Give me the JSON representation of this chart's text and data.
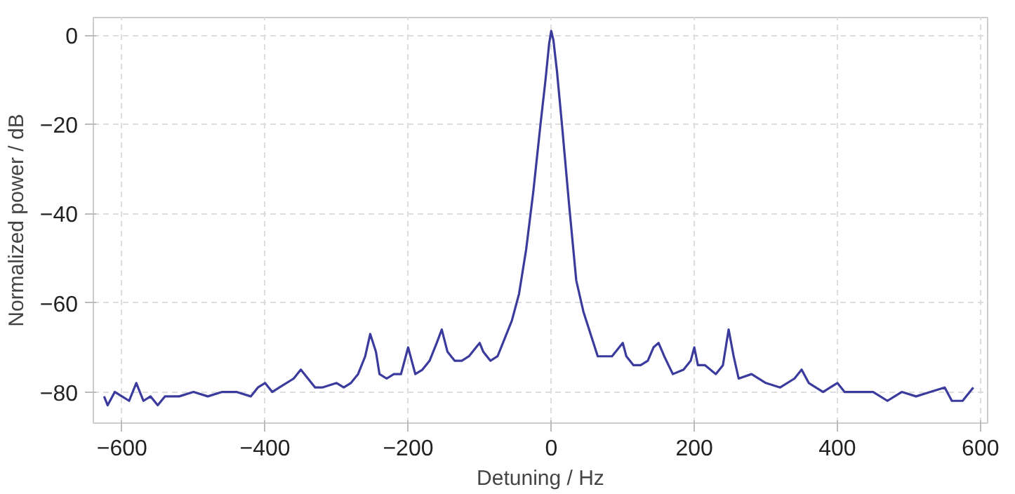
{
  "chart_data": {
    "type": "line",
    "xlabel": "Detuning / Hz",
    "ylabel": "Normalized power / dB",
    "xlim": [
      -640,
      610
    ],
    "ylim": [
      -87,
      4
    ],
    "xticks": [
      -600,
      -400,
      -200,
      0,
      200,
      400,
      600
    ],
    "yticks": [
      -80,
      -60,
      -40,
      -20,
      0
    ],
    "grid": true,
    "line_style": "solid",
    "marker": "none",
    "series": [
      {
        "color": "#3b3b9e",
        "x": [
          -625,
          -620,
          -610,
          -600,
          -590,
          -580,
          -570,
          -560,
          -550,
          -540,
          -520,
          -500,
          -480,
          -460,
          -440,
          -420,
          -410,
          -400,
          -390,
          -380,
          -360,
          -350,
          -340,
          -330,
          -320,
          -300,
          -290,
          -280,
          -270,
          -260,
          -253,
          -245,
          -240,
          -230,
          -220,
          -210,
          -200,
          -195,
          -190,
          -180,
          -170,
          -160,
          -153,
          -145,
          -135,
          -125,
          -115,
          -105,
          -100,
          -95,
          -85,
          -75,
          -65,
          -55,
          -45,
          -35,
          -25,
          -15,
          -8,
          -3,
          0,
          3,
          8,
          15,
          25,
          35,
          45,
          55,
          65,
          75,
          85,
          95,
          100,
          105,
          115,
          125,
          135,
          143,
          150,
          158,
          170,
          185,
          195,
          200,
          205,
          215,
          230,
          240,
          248,
          255,
          262,
          280,
          300,
          320,
          340,
          350,
          360,
          380,
          390,
          400,
          410,
          430,
          450,
          470,
          490,
          510,
          530,
          550,
          560,
          575,
          590
        ],
        "values": [
          -81,
          -83,
          -80,
          -81,
          -82,
          -78,
          -82,
          -81,
          -83,
          -81,
          -81,
          -80,
          -81,
          -80,
          -80,
          -81,
          -79,
          -78,
          -80,
          -79,
          -77,
          -75,
          -77,
          -79,
          -79,
          -78,
          -79,
          -78,
          -76,
          -72,
          -67,
          -71,
          -76,
          -77,
          -76,
          -76,
          -70,
          -73,
          -76,
          -75,
          -73,
          -69,
          -66,
          -71,
          -73,
          -73,
          -72,
          -70,
          -69,
          -71,
          -73,
          -72,
          -68,
          -64,
          -58,
          -48,
          -35,
          -20,
          -10,
          -2,
          1,
          -1,
          -8,
          -20,
          -38,
          -55,
          -62,
          -67,
          -72,
          -72,
          -72,
          -70,
          -69,
          -72,
          -74,
          -74,
          -73,
          -70,
          -69,
          -72,
          -76,
          -75,
          -73,
          -70,
          -74,
          -74,
          -76,
          -74,
          -66,
          -72,
          -77,
          -76,
          -78,
          -79,
          -77,
          -75,
          -78,
          -80,
          -79,
          -78,
          -80,
          -80,
          -80,
          -82,
          -80,
          -81,
          -80,
          -79,
          -82,
          -82,
          -79
        ]
      }
    ]
  }
}
